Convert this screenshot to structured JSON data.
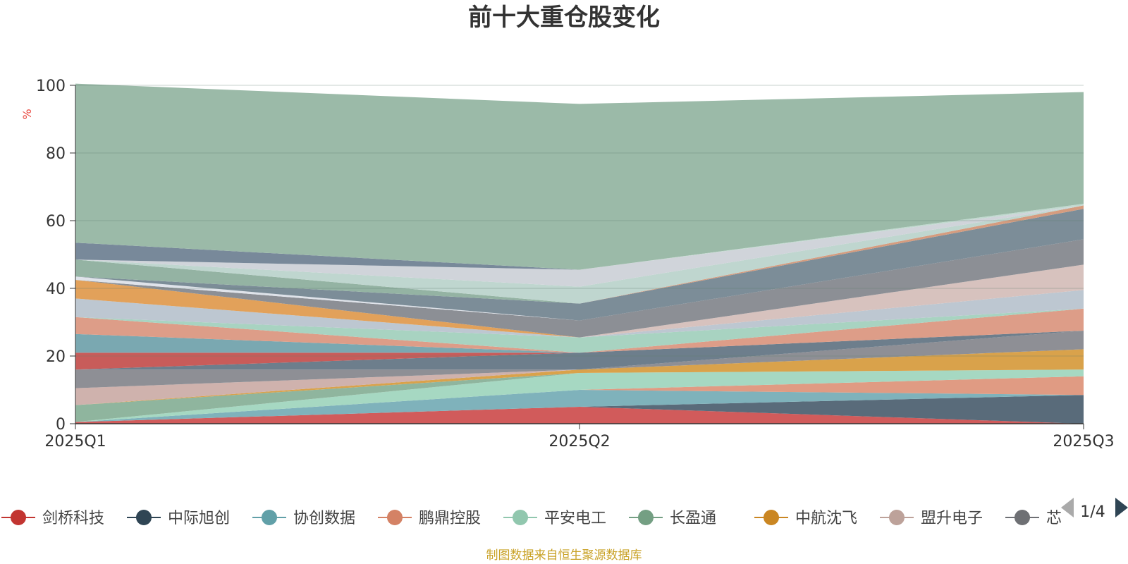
{
  "chart_data": {
    "type": "area",
    "title": "前十大重仓股变化",
    "ylabel": "%",
    "ylim": [
      0,
      100
    ],
    "yticks": [
      0,
      20,
      40,
      60,
      80,
      100
    ],
    "categories": [
      "2025Q1",
      "2025Q2",
      "2025Q3"
    ],
    "stacked": true,
    "grid": true,
    "legend_position": "bottom",
    "legend_page": "1/4",
    "series": [
      {
        "name": "剑桥科技",
        "values": [
          0.5,
          5.0,
          0.0
        ]
      },
      {
        "name": "中际旭创",
        "values": [
          0.0,
          0.0,
          8.5
        ]
      },
      {
        "name": "协创数据",
        "values": [
          0.0,
          5.0,
          0.0
        ]
      },
      {
        "name": "鹏鼎控股",
        "values": [
          0.0,
          0.0,
          5.5
        ]
      },
      {
        "name": "平安电工",
        "values": [
          0.0,
          5.0,
          2.0
        ]
      },
      {
        "name": "长盈通",
        "values": [
          5.0,
          0.0,
          0.0
        ]
      },
      {
        "name": "中航沈飞",
        "values": [
          0.0,
          1.0,
          6.0
        ]
      },
      {
        "name": "盟升电子",
        "values": [
          5.0,
          0.0,
          0.0
        ]
      },
      {
        "name": "芯",
        "values": [
          5.5,
          0.0,
          5.5
        ]
      },
      {
        "name": "",
        "values": [
          0.0,
          5.0,
          0.0
        ]
      },
      {
        "name": "",
        "values": [
          5.0,
          0.0,
          0.0
        ]
      },
      {
        "name": "",
        "values": [
          5.5,
          0.0,
          0.0
        ]
      },
      {
        "name": "",
        "values": [
          5.0,
          0.0,
          6.5
        ]
      },
      {
        "name": "",
        "values": [
          0.0,
          4.5,
          0.0
        ]
      },
      {
        "name": "",
        "values": [
          5.5,
          0.0,
          5.5
        ]
      },
      {
        "name": "",
        "values": [
          5.5,
          0.0,
          0.0
        ]
      },
      {
        "name": "",
        "values": [
          0.0,
          0.0,
          7.5
        ]
      },
      {
        "name": "",
        "values": [
          0.0,
          5.0,
          7.5
        ]
      },
      {
        "name": "",
        "values": [
          1.0,
          0.0,
          0.0
        ]
      },
      {
        "name": "",
        "values": [
          0.0,
          5.0,
          9.0
        ]
      },
      {
        "name": "",
        "values": [
          5.0,
          0.0,
          0.0
        ]
      },
      {
        "name": "",
        "values": [
          0.0,
          0.0,
          1.0
        ]
      },
      {
        "name": "",
        "values": [
          0.0,
          5.0,
          0.0
        ]
      },
      {
        "name": "",
        "values": [
          0.0,
          5.0,
          0.0
        ]
      },
      {
        "name": "",
        "values": [
          5.0,
          0.0,
          0.0
        ]
      },
      {
        "name": "",
        "values": [
          0.0,
          0.0,
          0.5
        ]
      },
      {
        "name": "",
        "values": [
          0.0,
          0.0,
          0.0
        ]
      },
      {
        "name": "",
        "values": [
          0.0,
          0.0,
          0.0
        ]
      },
      {
        "name": "",
        "values": [
          47.0,
          49.0,
          33.0
        ]
      }
    ],
    "colors": [
      "#d15b5b",
      "#596b7a",
      "#7fb2bb",
      "#e09b83",
      "#a6d8c2",
      "#8fb59e",
      "#d9a24b",
      "#cfb2ad",
      "#8e8f95",
      "#6d7e8c",
      "#c85c5a",
      "#7aa8b1",
      "#dd9d88",
      "#a8d3c1",
      "#bdc7d1",
      "#e2a15a",
      "#d7c2be",
      "#8c8f95",
      "#dfe3ea",
      "#7c8d98",
      "#94b3a3",
      "#d59c7f",
      "#bfd6cf",
      "#d0d4da",
      "#78899a",
      "#c0d9cf",
      "#9bb9a7",
      "#f0f0f0",
      "#9bbaa8"
    ],
    "legend_colors": [
      "#c23531",
      "#2f4554",
      "#61a0a8",
      "#d48265",
      "#91c7ae",
      "#749f83",
      "#ca8622",
      "#bda29a",
      "#6e7074"
    ]
  },
  "footer": {
    "source": "制图数据来自恒生聚源数据库"
  }
}
